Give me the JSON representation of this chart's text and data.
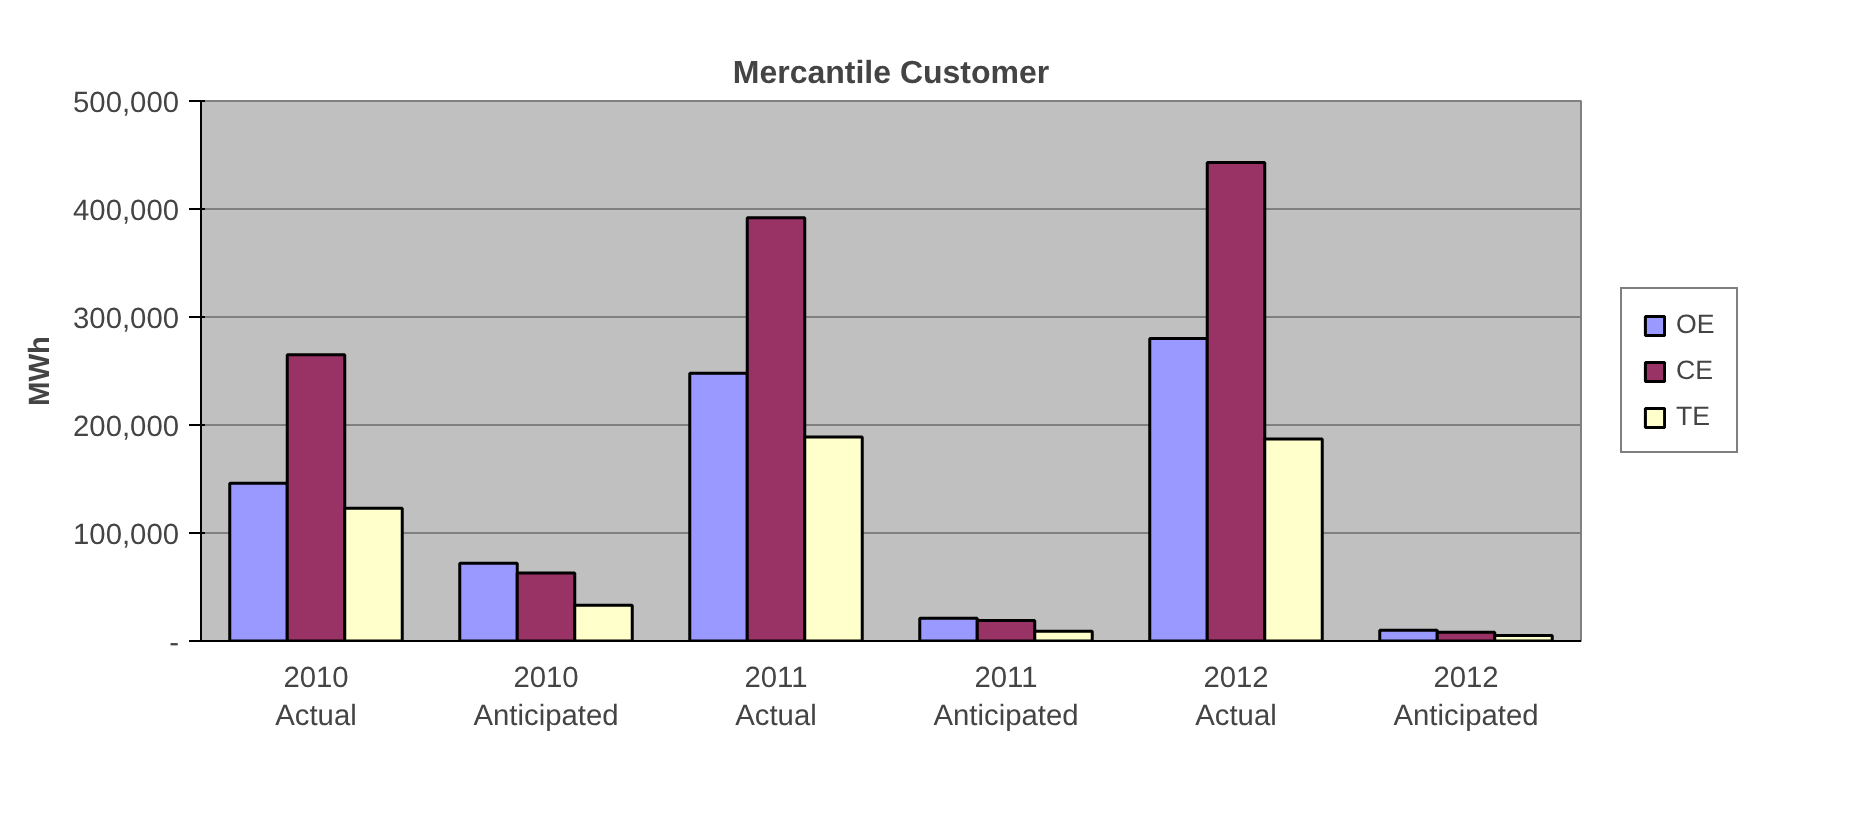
{
  "chart_data": {
    "type": "bar",
    "title": "Mercantile Customer",
    "ylabel": "MWh",
    "categories": [
      "2010\nActual",
      "2010\nAnticipated",
      "2011\nActual",
      "2011\nAnticipated",
      "2012\nActual",
      "2012\nAnticipated"
    ],
    "series": [
      {
        "name": "OE",
        "color": "#9999ff",
        "values": [
          146000,
          72000,
          248000,
          21000,
          280000,
          10000
        ]
      },
      {
        "name": "CE",
        "color": "#993366",
        "values": [
          265000,
          63000,
          392000,
          19000,
          443000,
          8000
        ]
      },
      {
        "name": "TE",
        "color": "#ffffcc",
        "values": [
          123000,
          33000,
          189000,
          9000,
          187000,
          5000
        ]
      }
    ],
    "ylim": [
      0,
      500000
    ],
    "yticks": [
      {
        "value": 0,
        "label": "-"
      },
      {
        "value": 100000,
        "label": "100,000"
      },
      {
        "value": 200000,
        "label": "200,000"
      },
      {
        "value": 300000,
        "label": "300,000"
      },
      {
        "value": 400000,
        "label": "400,000"
      },
      {
        "value": 500000,
        "label": "500,000"
      }
    ],
    "grid": "y",
    "legend": "right"
  }
}
